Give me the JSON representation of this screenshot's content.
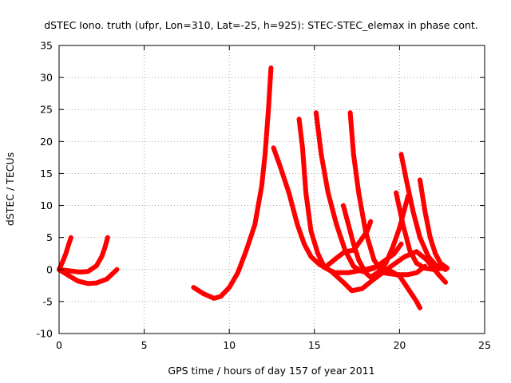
{
  "chart_data": {
    "type": "scatter",
    "title": "dSTEC Iono. truth (ufpr, Lon=310, Lat=-25, h=925): STEC-STEC_elemax in phase cont.",
    "xlabel": "GPS time / hours of day 157 of year 2011",
    "ylabel": "dSTEC  / TECUs",
    "xlim": [
      0,
      25
    ],
    "ylim": [
      -10,
      35
    ],
    "xticks": [
      0,
      5,
      10,
      15,
      20,
      25
    ],
    "yticks": [
      -10,
      -5,
      0,
      5,
      10,
      15,
      20,
      25,
      30,
      35
    ],
    "grid": true,
    "legend": "none",
    "marker": "plus",
    "color": "#ff0000",
    "series": [
      {
        "points": [
          [
            0.0,
            0.0
          ],
          [
            0.2,
            1.2
          ],
          [
            0.4,
            2.5
          ],
          [
            0.55,
            3.8
          ],
          [
            0.7,
            5.0
          ]
        ]
      },
      {
        "points": [
          [
            0.0,
            0.0
          ],
          [
            0.6,
            -0.2
          ],
          [
            1.2,
            -0.4
          ],
          [
            1.7,
            -0.3
          ],
          [
            2.2,
            0.6
          ],
          [
            2.5,
            2.0
          ],
          [
            2.7,
            3.5
          ],
          [
            2.85,
            5.0
          ]
        ]
      },
      {
        "points": [
          [
            0.0,
            0.0
          ],
          [
            0.6,
            -1.0
          ],
          [
            1.1,
            -1.8
          ],
          [
            1.7,
            -2.2
          ],
          [
            2.2,
            -2.1
          ],
          [
            2.8,
            -1.5
          ],
          [
            3.4,
            0.0
          ]
        ]
      },
      {
        "points": [
          [
            7.9,
            -2.8
          ],
          [
            8.5,
            -3.8
          ],
          [
            9.1,
            -4.5
          ],
          [
            9.5,
            -4.2
          ],
          [
            10.0,
            -2.8
          ],
          [
            10.5,
            -0.5
          ],
          [
            11.0,
            3.0
          ],
          [
            11.5,
            7.0
          ],
          [
            11.9,
            13.0
          ],
          [
            12.1,
            18.0
          ],
          [
            12.3,
            25.0
          ],
          [
            12.45,
            31.5
          ]
        ]
      },
      {
        "points": [
          [
            12.6,
            19.0
          ],
          [
            13.0,
            16.0
          ],
          [
            13.5,
            12.0
          ],
          [
            14.0,
            7.0
          ],
          [
            14.4,
            4.0
          ],
          [
            14.8,
            2.0
          ],
          [
            15.3,
            0.8
          ],
          [
            16.0,
            -0.3
          ],
          [
            16.7,
            -2.0
          ],
          [
            17.2,
            -3.3
          ],
          [
            17.8,
            -3.0
          ],
          [
            18.5,
            -1.5
          ],
          [
            19.5,
            0.5
          ],
          [
            20.3,
            2.0
          ],
          [
            21.0,
            2.8
          ],
          [
            21.6,
            1.5
          ],
          [
            22.3,
            -0.8
          ],
          [
            22.7,
            -2.0
          ]
        ]
      },
      {
        "points": [
          [
            14.1,
            23.5
          ],
          [
            14.3,
            19.0
          ],
          [
            14.5,
            12.0
          ],
          [
            14.8,
            6.0
          ],
          [
            15.2,
            2.5
          ],
          [
            15.6,
            0.3
          ],
          [
            16.2,
            -0.5
          ],
          [
            17.0,
            -0.5
          ],
          [
            18.0,
            0.0
          ],
          [
            18.7,
            0.5
          ],
          [
            19.3,
            0.0
          ],
          [
            20.0,
            -1.0
          ],
          [
            20.5,
            -3.0
          ],
          [
            21.0,
            -5.0
          ],
          [
            21.2,
            -6.0
          ]
        ]
      },
      {
        "points": [
          [
            15.1,
            24.5
          ],
          [
            15.4,
            18.0
          ],
          [
            15.8,
            12.0
          ],
          [
            16.3,
            7.0
          ],
          [
            16.8,
            3.0
          ],
          [
            17.3,
            0.5
          ],
          [
            17.8,
            -0.3
          ],
          [
            18.5,
            0.2
          ],
          [
            19.2,
            1.5
          ],
          [
            19.7,
            2.5
          ],
          [
            20.1,
            4.0
          ]
        ]
      },
      {
        "points": [
          [
            17.1,
            24.5
          ],
          [
            17.3,
            18.0
          ],
          [
            17.6,
            12.0
          ],
          [
            18.0,
            6.0
          ],
          [
            18.5,
            1.5
          ],
          [
            19.0,
            -0.5
          ],
          [
            19.8,
            -0.8
          ],
          [
            20.5,
            -0.8
          ],
          [
            21.0,
            -0.5
          ],
          [
            21.5,
            0.5
          ]
        ]
      },
      {
        "points": [
          [
            15.7,
            0.5
          ],
          [
            16.3,
            1.8
          ],
          [
            16.8,
            2.8
          ],
          [
            17.3,
            3.0
          ],
          [
            17.7,
            4.5
          ],
          [
            18.1,
            6.0
          ],
          [
            18.3,
            7.5
          ]
        ]
      },
      {
        "points": [
          [
            16.7,
            10.0
          ],
          [
            17.0,
            7.0
          ],
          [
            17.3,
            4.0
          ],
          [
            17.6,
            1.5
          ],
          [
            18.0,
            -0.5
          ],
          [
            18.3,
            -1.2
          ],
          [
            18.7,
            -0.5
          ],
          [
            19.2,
            1.0
          ],
          [
            19.6,
            3.5
          ],
          [
            20.0,
            6.5
          ],
          [
            20.3,
            9.5
          ],
          [
            20.5,
            11.5
          ]
        ]
      },
      {
        "points": [
          [
            19.8,
            12.0
          ],
          [
            20.2,
            7.0
          ],
          [
            20.6,
            3.0
          ],
          [
            21.0,
            1.0
          ],
          [
            21.5,
            0.2
          ],
          [
            22.0,
            0.0
          ],
          [
            22.5,
            0.2
          ]
        ]
      },
      {
        "points": [
          [
            20.1,
            18.0
          ],
          [
            20.4,
            14.0
          ],
          [
            20.8,
            9.0
          ],
          [
            21.2,
            5.0
          ],
          [
            21.7,
            2.0
          ],
          [
            22.2,
            0.5
          ],
          [
            22.7,
            0.0
          ]
        ]
      },
      {
        "points": [
          [
            21.2,
            14.0
          ],
          [
            21.5,
            9.0
          ],
          [
            21.8,
            5.0
          ],
          [
            22.1,
            2.5
          ],
          [
            22.4,
            1.0
          ],
          [
            22.8,
            0.2
          ]
        ]
      }
    ]
  }
}
